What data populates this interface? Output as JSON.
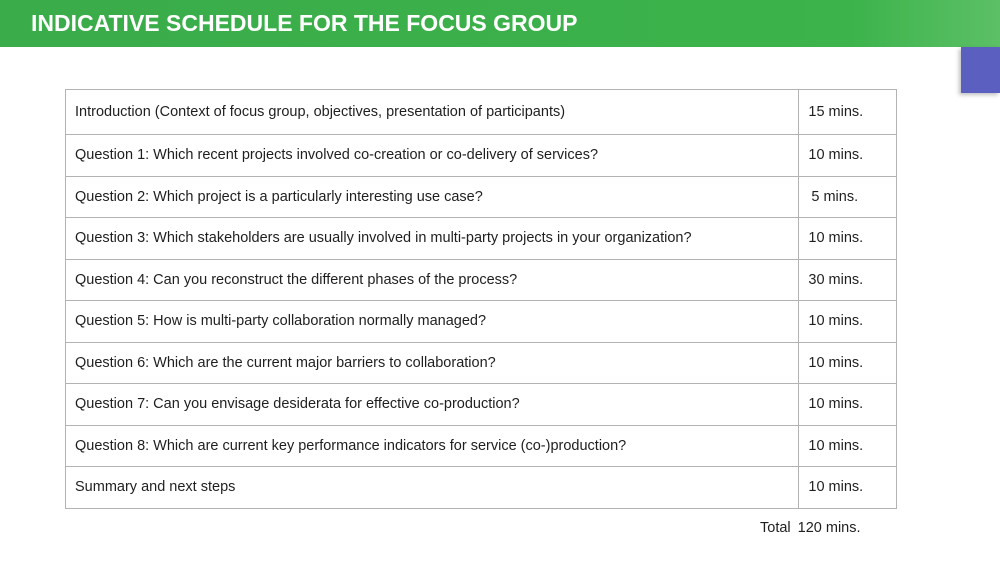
{
  "header": {
    "title": "INDICATIVE SCHEDULE FOR THE FOCUS GROUP"
  },
  "colors": {
    "title_bar": "#3cb34b",
    "corner_tab": "#5b5fc0"
  },
  "schedule": {
    "rows": [
      {
        "topic": "Introduction (Context of focus group, objectives, presentation of participants)",
        "duration": "15 mins."
      },
      {
        "topic": "Question 1: Which recent projects involved co-creation or co-delivery of services?",
        "duration": "10 mins."
      },
      {
        "topic": "Question 2: Which project is a particularly interesting use case?",
        "duration": "5 mins."
      },
      {
        "topic": "Question 3: Which stakeholders are usually involved in multi-party projects in your organization?",
        "duration": "10 mins."
      },
      {
        "topic": "Question 4: Can you reconstruct the different phases of the process?",
        "duration": "30 mins."
      },
      {
        "topic": "Question 5: How is multi-party collaboration normally managed?",
        "duration": "10 mins."
      },
      {
        "topic": "Question 6: Which are the current major barriers to collaboration?",
        "duration": "10 mins."
      },
      {
        "topic": "Question 7: Can you envisage desiderata for effective co-production?",
        "duration": "10 mins."
      },
      {
        "topic": "Question 8: Which are current key performance indicators for service (co-)production?",
        "duration": "10 mins."
      },
      {
        "topic": "Summary and next steps",
        "duration": "10 mins."
      }
    ],
    "total_label": "Total",
    "total_value": "120 mins."
  }
}
